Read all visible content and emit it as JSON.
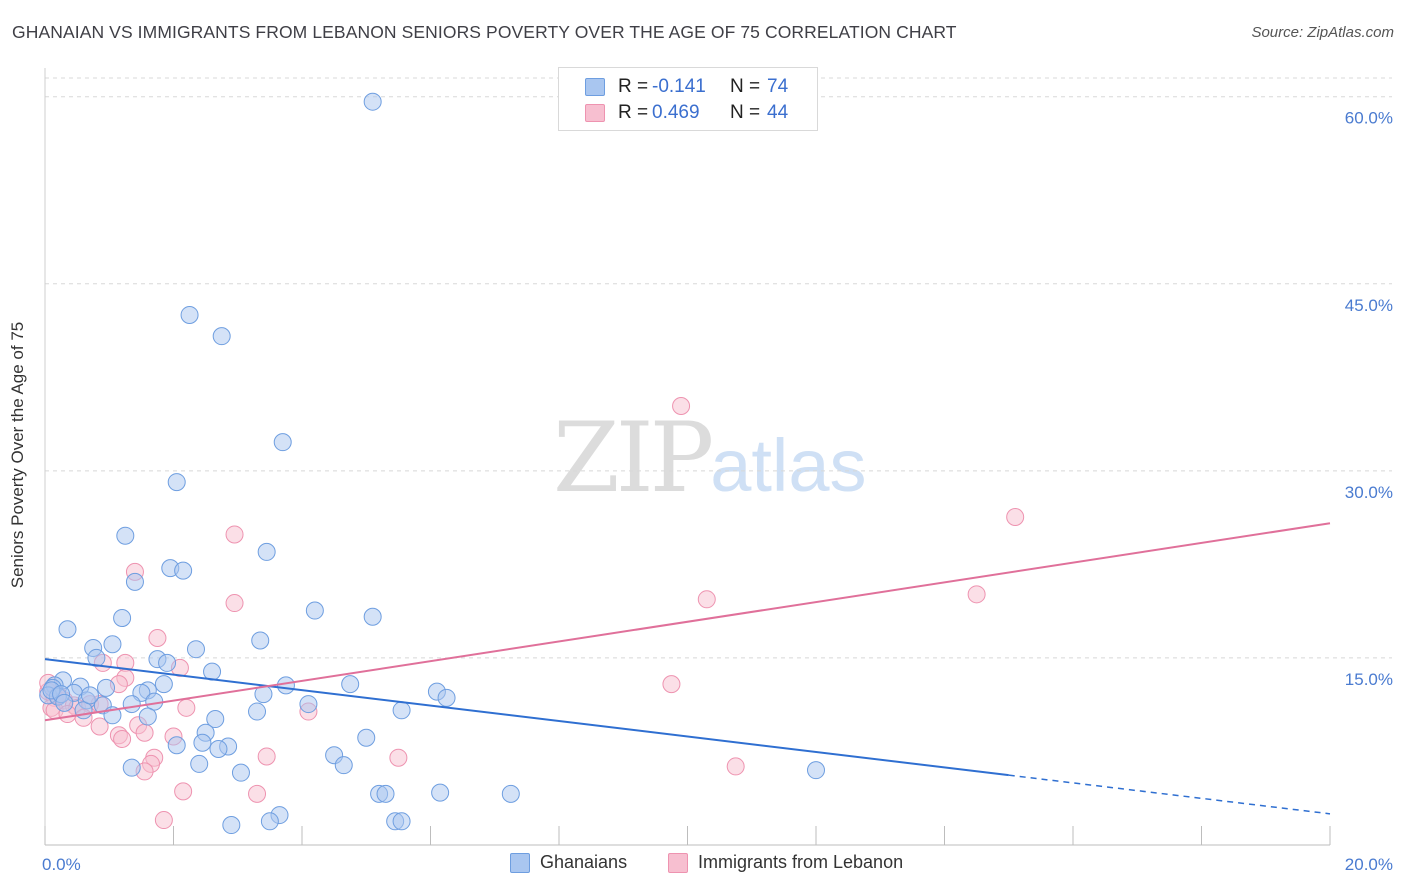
{
  "title": "GHANAIAN VS IMMIGRANTS FROM LEBANON SENIORS POVERTY OVER THE AGE OF 75 CORRELATION CHART",
  "source": "Source: ZipAtlas.com",
  "watermark": {
    "zip": "ZIP",
    "atlas": "atlas"
  },
  "legend_top": [
    {
      "r_label": "R =",
      "r_value": "-0.141",
      "n_label": "N =",
      "n_value": "74"
    },
    {
      "r_label": "R =",
      "r_value": "0.469",
      "n_label": "N =",
      "n_value": "44"
    }
  ],
  "legend_bottom": [
    {
      "label": "Ghanaians"
    },
    {
      "label": "Immigrants from Lebanon"
    }
  ],
  "colors": {
    "ghanaians_fill": "#a9c6f0",
    "ghanaians_stroke": "#6e9ee0",
    "ghanaians_line": "#2f6fd1",
    "lebanon_fill": "#f7bfd0",
    "lebanon_stroke": "#ee93b0",
    "lebanon_line": "#e0709a",
    "axis_tick_text": "#4a7bd0",
    "grid": "#d8d8d8"
  },
  "chart_data": {
    "type": "scatter",
    "xlabel": "",
    "ylabel": "Seniors Poverty Over the Age of 75",
    "xlim": [
      0,
      20
    ],
    "ylim": [
      0,
      61.5
    ],
    "x_ticks": [
      0,
      2,
      4,
      6,
      8,
      10,
      12,
      14,
      16,
      18,
      20
    ],
    "x_tick_labels": [
      {
        "value": 0,
        "label": "0.0%"
      },
      {
        "value": 20,
        "label": "20.0%"
      }
    ],
    "y_ticks": [
      {
        "value": 15,
        "label": "15.0%"
      },
      {
        "value": 30,
        "label": "30.0%"
      },
      {
        "value": 45,
        "label": "45.0%"
      },
      {
        "value": 60,
        "label": "60.0%"
      }
    ],
    "grid": "dashed horizontal",
    "legend_position": "top-center",
    "series": [
      {
        "name": "Ghanaians",
        "trend": {
          "x0": 0,
          "y0": 14.9,
          "x1": 15.0,
          "y1": 5.6,
          "dash_to_x": 20,
          "dash_to_y": 2.5
        },
        "points": [
          [
            5.1,
            59.6
          ],
          [
            2.25,
            42.5
          ],
          [
            2.75,
            40.8
          ],
          [
            3.7,
            32.3
          ],
          [
            2.05,
            29.1
          ],
          [
            1.25,
            24.8
          ],
          [
            3.45,
            23.5
          ],
          [
            1.95,
            22.2
          ],
          [
            2.15,
            22.0
          ],
          [
            1.4,
            21.1
          ],
          [
            4.2,
            18.8
          ],
          [
            5.1,
            18.3
          ],
          [
            1.2,
            18.2
          ],
          [
            0.35,
            17.3
          ],
          [
            3.35,
            16.4
          ],
          [
            1.05,
            16.1
          ],
          [
            0.75,
            15.8
          ],
          [
            2.35,
            15.7
          ],
          [
            0.8,
            15.0
          ],
          [
            1.75,
            14.9
          ],
          [
            1.9,
            14.6
          ],
          [
            2.6,
            13.9
          ],
          [
            0.28,
            13.2
          ],
          [
            0.15,
            12.8
          ],
          [
            0.12,
            12.6
          ],
          [
            0.55,
            12.7
          ],
          [
            0.95,
            12.6
          ],
          [
            3.75,
            12.8
          ],
          [
            4.75,
            12.9
          ],
          [
            6.1,
            12.3
          ],
          [
            1.85,
            12.9
          ],
          [
            1.6,
            12.4
          ],
          [
            1.5,
            12.2
          ],
          [
            0.45,
            12.2
          ],
          [
            3.4,
            12.1
          ],
          [
            0.05,
            12.0
          ],
          [
            0.2,
            11.9
          ],
          [
            0.65,
            11.6
          ],
          [
            1.35,
            11.3
          ],
          [
            0.9,
            11.2
          ],
          [
            6.25,
            11.8
          ],
          [
            1.7,
            11.5
          ],
          [
            4.1,
            11.3
          ],
          [
            5.55,
            10.8
          ],
          [
            3.3,
            10.7
          ],
          [
            1.6,
            10.3
          ],
          [
            2.65,
            10.1
          ],
          [
            0.6,
            10.8
          ],
          [
            1.05,
            10.4
          ],
          [
            2.5,
            9.0
          ],
          [
            5.0,
            8.6
          ],
          [
            2.05,
            8.0
          ],
          [
            2.45,
            8.2
          ],
          [
            2.85,
            7.9
          ],
          [
            2.7,
            7.7
          ],
          [
            4.5,
            7.2
          ],
          [
            4.65,
            6.4
          ],
          [
            2.4,
            6.5
          ],
          [
            1.35,
            6.2
          ],
          [
            3.05,
            5.8
          ],
          [
            12.0,
            6.0
          ],
          [
            5.2,
            4.1
          ],
          [
            5.3,
            4.1
          ],
          [
            6.15,
            4.2
          ],
          [
            7.25,
            4.1
          ],
          [
            3.65,
            2.4
          ],
          [
            3.5,
            1.9
          ],
          [
            5.45,
            1.9
          ],
          [
            5.55,
            1.9
          ],
          [
            2.9,
            1.6
          ],
          [
            0.1,
            12.4
          ],
          [
            0.25,
            12.1
          ],
          [
            0.3,
            11.4
          ],
          [
            0.7,
            12.0
          ]
        ]
      },
      {
        "name": "Immigrants from Lebanon",
        "trend": {
          "x0": 0,
          "y0": 10.0,
          "x1": 20,
          "y1": 25.8
        },
        "points": [
          [
            9.9,
            35.2
          ],
          [
            15.1,
            26.3
          ],
          [
            2.95,
            24.9
          ],
          [
            1.4,
            21.9
          ],
          [
            10.3,
            19.7
          ],
          [
            14.5,
            20.1
          ],
          [
            2.95,
            19.4
          ],
          [
            1.75,
            16.6
          ],
          [
            1.25,
            14.6
          ],
          [
            2.1,
            14.2
          ],
          [
            0.9,
            14.6
          ],
          [
            1.25,
            13.4
          ],
          [
            9.75,
            12.9
          ],
          [
            1.15,
            12.9
          ],
          [
            0.05,
            12.3
          ],
          [
            0.15,
            11.8
          ],
          [
            0.3,
            11.6
          ],
          [
            0.45,
            11.2
          ],
          [
            0.5,
            11.0
          ],
          [
            0.7,
            11.3
          ],
          [
            0.85,
            11.3
          ],
          [
            0.6,
            10.2
          ],
          [
            0.1,
            11.0
          ],
          [
            4.1,
            10.7
          ],
          [
            2.2,
            11.0
          ],
          [
            0.15,
            10.8
          ],
          [
            1.45,
            9.6
          ],
          [
            0.85,
            9.5
          ],
          [
            1.55,
            9.0
          ],
          [
            1.15,
            8.8
          ],
          [
            1.2,
            8.5
          ],
          [
            2.0,
            8.7
          ],
          [
            1.7,
            7.0
          ],
          [
            3.45,
            7.1
          ],
          [
            5.5,
            7.0
          ],
          [
            1.65,
            6.5
          ],
          [
            1.55,
            5.9
          ],
          [
            10.75,
            6.3
          ],
          [
            2.15,
            4.3
          ],
          [
            3.3,
            4.1
          ],
          [
            1.85,
            2.0
          ],
          [
            0.05,
            13.0
          ],
          [
            0.2,
            12.0
          ],
          [
            0.35,
            10.5
          ]
        ]
      }
    ]
  }
}
